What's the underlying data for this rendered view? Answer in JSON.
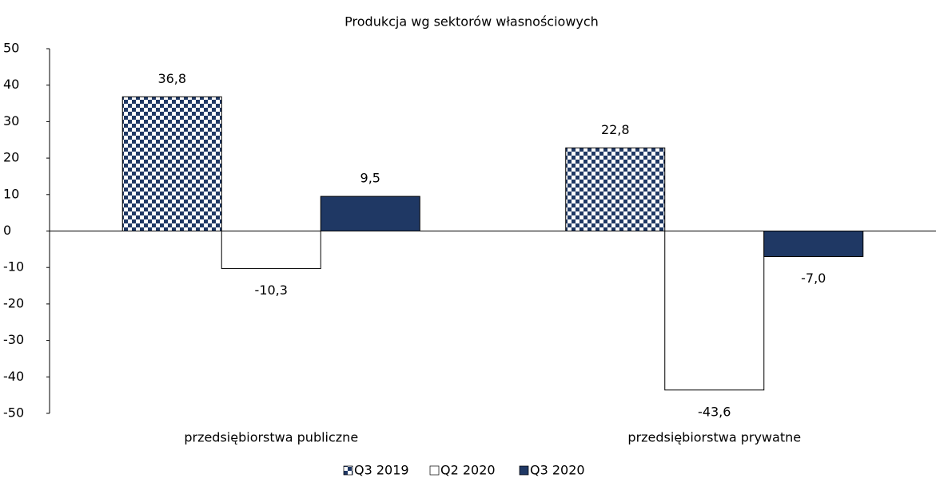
{
  "chart_data": {
    "type": "bar",
    "title": "Produkcja wg sektorów własnościowych",
    "categories": [
      "przedsiębiorstwa publiczne",
      "przedsiębiorstwa prywatne"
    ],
    "series": [
      {
        "name": "Q3 2019",
        "color": "#1f3864",
        "pattern": "checker",
        "values": [
          36.8,
          22.8
        ],
        "value_labels": [
          "36,8",
          "22,8"
        ]
      },
      {
        "name": "Q2 2020",
        "color": "#ffffff",
        "values": [
          -10.3,
          -43.6
        ],
        "value_labels": [
          "-10,3",
          "-43,6"
        ]
      },
      {
        "name": "Q3 2020",
        "color": "#1f3864",
        "values": [
          9.5,
          -7.0
        ],
        "value_labels": [
          "9,5",
          "-7,0"
        ]
      }
    ],
    "ylim": [
      -50,
      50
    ],
    "yticks": [
      -50,
      -40,
      -30,
      -20,
      -10,
      0,
      10,
      20,
      30,
      40,
      50
    ],
    "grid": false,
    "legend": "bottom"
  }
}
